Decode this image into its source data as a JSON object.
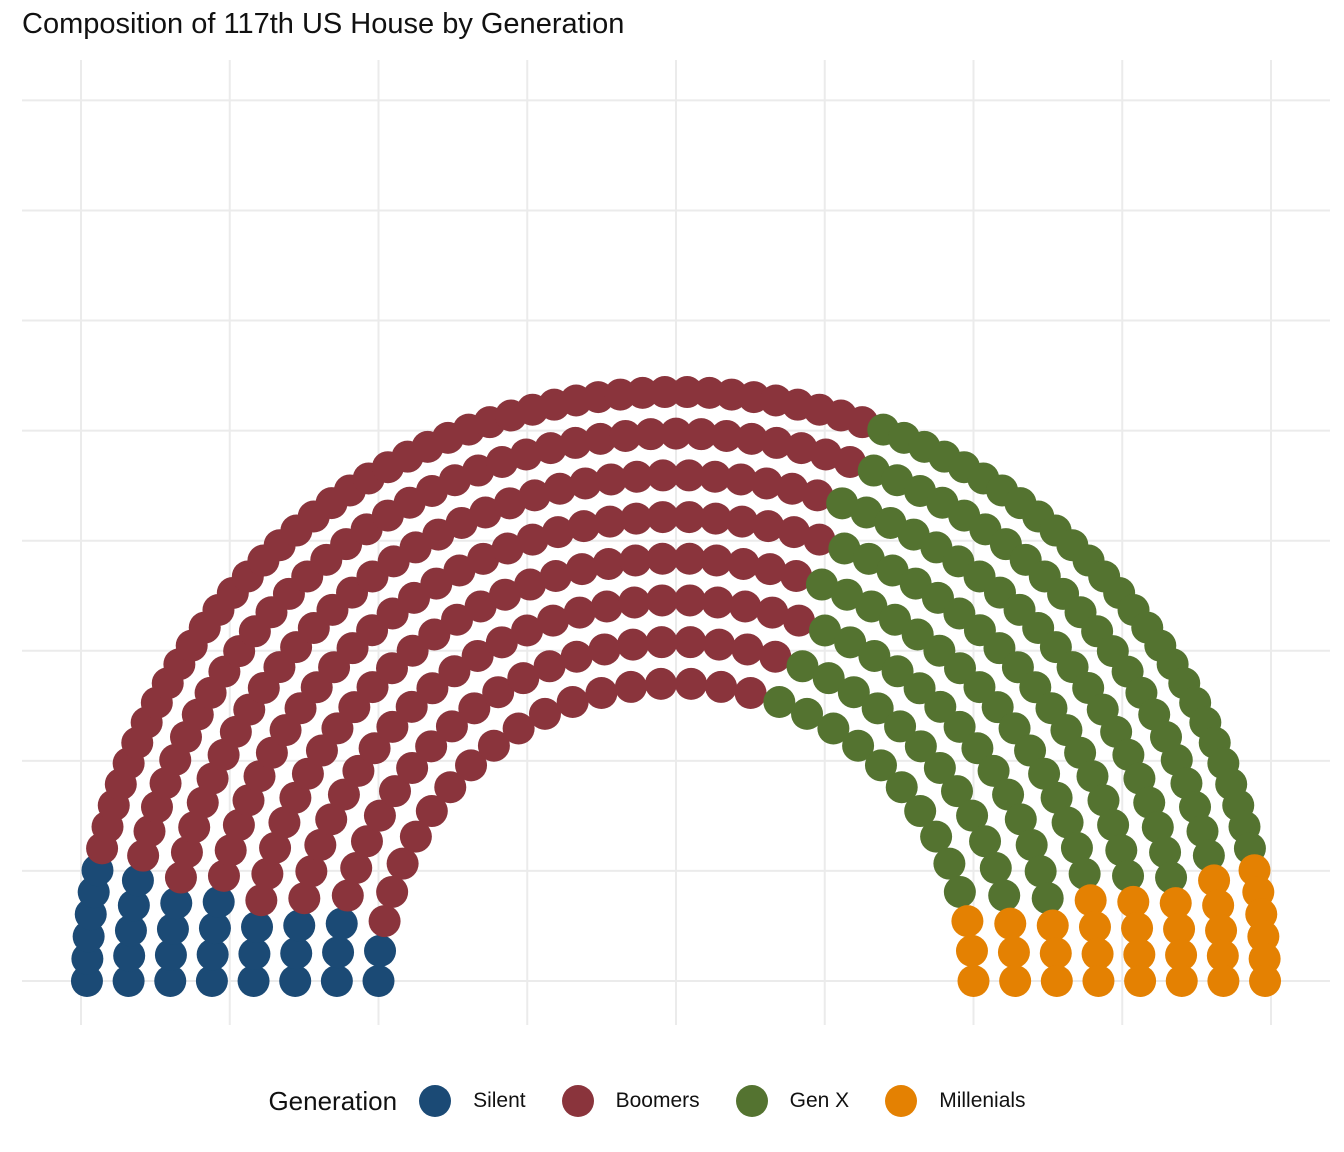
{
  "chart_data": {
    "type": "scatter",
    "title": "Composition of 117th US House by Generation",
    "legend": {
      "title": "Generation",
      "position": "bottom",
      "entries": [
        {
          "name": "Silent",
          "color": "#1b4a75"
        },
        {
          "name": "Boomers",
          "color": "#8a343c"
        },
        {
          "name": "Gen X",
          "color": "#547330"
        },
        {
          "name": "Millenials",
          "color": "#e48102"
        }
      ]
    },
    "grid": true,
    "axes_visible": false,
    "seat_counts": {
      "Silent": 30,
      "Boomers": 233,
      "Gen X": 140,
      "Millenials": 32
    },
    "rings": [
      {
        "radius": 5.0,
        "seats": 32
      },
      {
        "radius": 5.7,
        "seats": 38
      },
      {
        "radius": 6.4,
        "seats": 44
      },
      {
        "radius": 7.1,
        "seats": 50
      },
      {
        "radius": 7.8,
        "seats": 56
      },
      {
        "radius": 8.5,
        "seats": 62
      },
      {
        "radius": 9.2,
        "seats": 69
      },
      {
        "radius": 9.9,
        "seats": 84
      }
    ]
  }
}
